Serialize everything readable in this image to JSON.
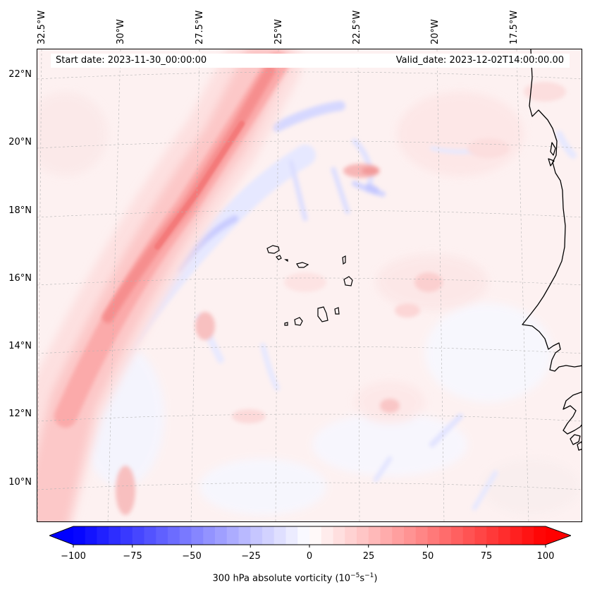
{
  "map": {
    "start_date": "Start date: 2023-11-30_00:00:00",
    "valid_date": "Valid_date: 2023-12-02T14:00:00.00",
    "lat_labels": [
      "22°N",
      "20°N",
      "18°N",
      "16°N",
      "14°N",
      "12°N",
      "10°N"
    ],
    "lon_labels": [
      "32.5°W",
      "30°W",
      "27.5°W",
      "25°W",
      "22.5°W",
      "20°W",
      "17.5°W"
    ],
    "extent_deg": {
      "lon_min": -33.4,
      "lon_max": -15.9,
      "lat_min": 8.7,
      "lat_max": 22.8
    },
    "gridlines": true,
    "coastline_color": "#000000",
    "features": [
      "positive vorticity band along jet streak (southwest to northeast)",
      "Cape Verde islands",
      "West African coastline"
    ]
  },
  "colorbar": {
    "label_prefix": "300 hPa absolute vorticity (10",
    "label_exp1": "−5",
    "label_mid": "s",
    "label_exp2": "−1",
    "label_suffix": ")",
    "min": -100,
    "max": 100,
    "ticks": [
      "−100",
      "−75",
      "−50",
      "−25",
      "0",
      "25",
      "50",
      "75",
      "100"
    ],
    "colormap": "bwr",
    "extend": "both",
    "low_color": "#0000ff",
    "mid_color": "#ffffff",
    "high_color": "#ff0000"
  }
}
